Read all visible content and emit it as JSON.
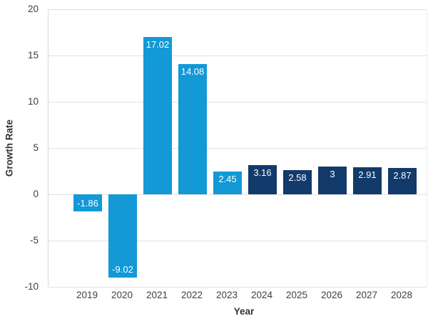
{
  "chart_data": {
    "type": "bar",
    "title": "",
    "xlabel": "Year",
    "ylabel": "Growth Rate",
    "categories": [
      "2019",
      "2020",
      "2021",
      "2022",
      "2023",
      "2024",
      "2025",
      "2026",
      "2027",
      "2028"
    ],
    "values": [
      -1.86,
      -9.02,
      17.02,
      14.08,
      2.45,
      3.16,
      2.58,
      3,
      2.91,
      2.87
    ],
    "labels": [
      "-1.86",
      "-9.02",
      "17.02",
      "14.08",
      "2.45",
      "3.16",
      "2.58",
      "3",
      "2.91",
      "2.87"
    ],
    "bar_colors": [
      "#1299D6",
      "#1299D6",
      "#1299D6",
      "#1299D6",
      "#1299D6",
      "#123A6B",
      "#123A6B",
      "#123A6B",
      "#123A6B",
      "#123A6B"
    ],
    "colors": {
      "light_blue": "#1299D6",
      "dark_navy": "#123A6B",
      "bar_label_text": "#FFFFFF",
      "axis_text": "#404040",
      "axis_title_text": "#333333",
      "gridline": "#E1E1E1"
    },
    "ylim": [
      -10,
      20
    ],
    "y_ticks": [
      20,
      15,
      10,
      5,
      0,
      -5,
      -10
    ],
    "grid": "horizontal",
    "legend": "none"
  }
}
